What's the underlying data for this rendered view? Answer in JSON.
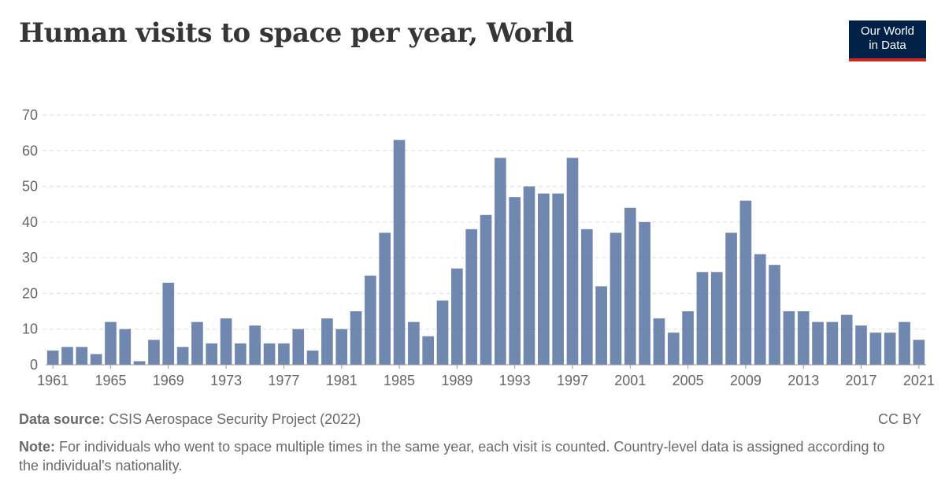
{
  "header": {
    "title": "Human visits to space per year, World",
    "logo_line1": "Our World",
    "logo_line2": "in Data"
  },
  "footer": {
    "source_label": "Data source:",
    "source_text": "CSIS Aerospace Security Project (2022)",
    "license": "CC BY",
    "note_label": "Note:",
    "note_text": "For individuals who went to space multiple times in the same year, each visit is counted. Country-level data is assigned according to the individual's nationality."
  },
  "colors": {
    "bar": "#4c6a9c",
    "logo_bg": "#002147",
    "logo_accent": "#ce261e"
  },
  "chart_data": {
    "type": "bar",
    "title": "Human visits to space per year, World",
    "xlabel": "",
    "ylabel": "",
    "ylim": [
      0,
      70
    ],
    "yticks": [
      0,
      10,
      20,
      30,
      40,
      50,
      60,
      70
    ],
    "xticks": [
      1961,
      1965,
      1969,
      1973,
      1977,
      1981,
      1985,
      1989,
      1993,
      1997,
      2001,
      2005,
      2009,
      2013,
      2017,
      2021
    ],
    "grid": true,
    "categories": [
      1961,
      1962,
      1963,
      1964,
      1965,
      1966,
      1967,
      1968,
      1969,
      1970,
      1971,
      1972,
      1973,
      1974,
      1975,
      1976,
      1977,
      1978,
      1979,
      1980,
      1981,
      1982,
      1983,
      1984,
      1985,
      1986,
      1987,
      1988,
      1989,
      1990,
      1991,
      1992,
      1993,
      1994,
      1995,
      1996,
      1997,
      1998,
      1999,
      2000,
      2001,
      2002,
      2003,
      2004,
      2005,
      2006,
      2007,
      2008,
      2009,
      2010,
      2011,
      2012,
      2013,
      2014,
      2015,
      2016,
      2017,
      2018,
      2019,
      2020,
      2021
    ],
    "values": [
      4,
      5,
      5,
      3,
      12,
      10,
      1,
      7,
      23,
      5,
      12,
      6,
      13,
      6,
      11,
      6,
      6,
      10,
      4,
      13,
      10,
      15,
      25,
      37,
      63,
      12,
      8,
      18,
      27,
      38,
      42,
      58,
      47,
      50,
      48,
      48,
      58,
      38,
      22,
      37,
      44,
      40,
      13,
      9,
      15,
      26,
      26,
      37,
      46,
      31,
      28,
      15,
      15,
      12,
      12,
      14,
      11,
      9,
      9,
      12,
      7
    ]
  }
}
